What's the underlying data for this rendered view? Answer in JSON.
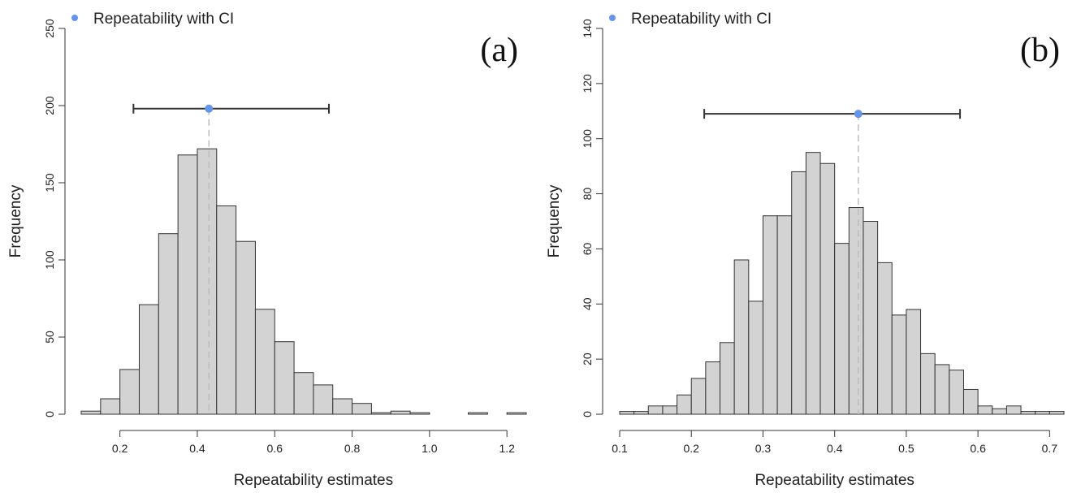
{
  "chart_data": [
    {
      "type": "bar",
      "panel_label": "(a)",
      "xlabel": "Repeatability estimates",
      "ylabel": "Frequency",
      "legend": "Repeatability with CI",
      "legend_position": "top-left",
      "legend_color": "#6495ED",
      "bar_color": "#d3d3d3",
      "xlim": [
        0.1,
        1.25
      ],
      "ylim": [
        0,
        250
      ],
      "xticks": [
        "0.2",
        "0.4",
        "0.6",
        "0.8",
        "1.0",
        "1.2"
      ],
      "yticks": [
        "0",
        "50",
        "100",
        "150",
        "200",
        "250"
      ],
      "bin_start": 0.1,
      "bin_width": 0.05,
      "values": [
        2,
        10,
        29,
        71,
        117,
        168,
        172,
        135,
        112,
        68,
        47,
        27,
        19,
        10,
        7,
        1,
        2,
        1,
        0,
        0,
        1,
        0,
        1
      ],
      "estimate": {
        "value": 0.43,
        "ci_low": 0.235,
        "ci_high": 0.74,
        "plot_y": 198
      }
    },
    {
      "type": "bar",
      "panel_label": "(b)",
      "xlabel": "Repeatability estimates",
      "ylabel": "Frequency",
      "legend": "Repeatability with CI",
      "legend_position": "top-left",
      "legend_color": "#6495ED",
      "bar_color": "#d3d3d3",
      "xlim": [
        0.1,
        0.72
      ],
      "ylim": [
        0,
        140
      ],
      "xticks": [
        "0.1",
        "0.2",
        "0.3",
        "0.4",
        "0.5",
        "0.6",
        "0.7"
      ],
      "yticks": [
        "0",
        "20",
        "40",
        "60",
        "80",
        "100",
        "120",
        "140"
      ],
      "bin_start": 0.1,
      "bin_width": 0.02,
      "values": [
        1,
        1,
        3,
        3,
        7,
        13,
        19,
        26,
        56,
        41,
        72,
        72,
        88,
        95,
        91,
        62,
        75,
        70,
        55,
        36,
        38,
        22,
        18,
        16,
        9,
        3,
        2,
        3,
        1,
        1,
        1
      ],
      "estimate": {
        "value": 0.433,
        "ci_low": 0.218,
        "ci_high": 0.575,
        "plot_y": 109
      }
    }
  ]
}
